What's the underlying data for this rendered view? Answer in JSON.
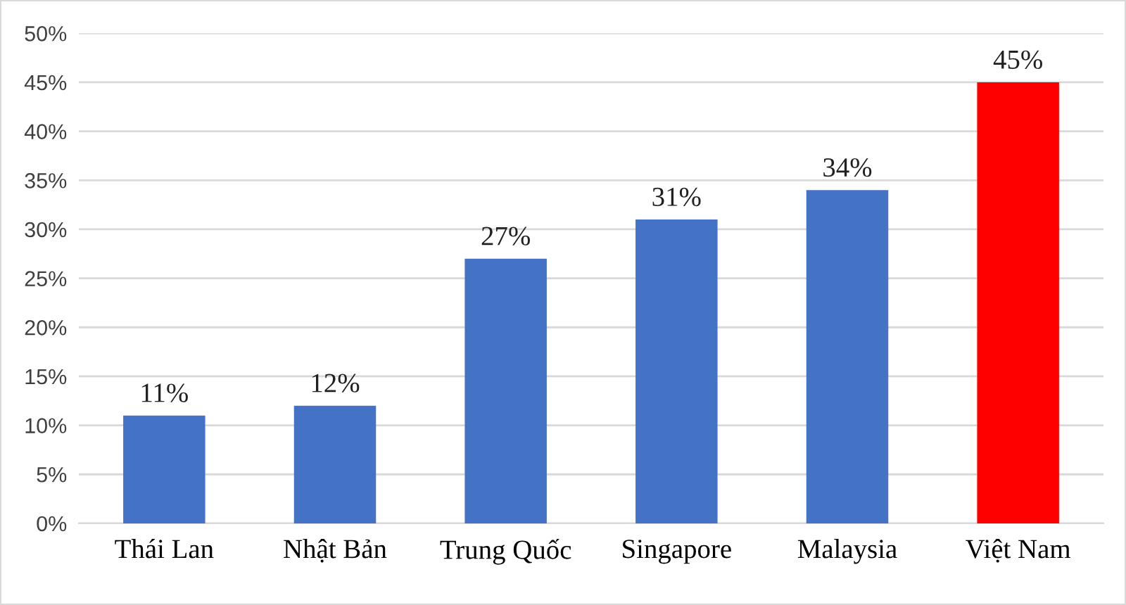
{
  "chart_data": {
    "type": "bar",
    "categories": [
      "Thái Lan",
      "Nhật Bản",
      "Trung Quốc",
      "Singapore",
      "Malaysia",
      "Việt Nam"
    ],
    "values": [
      11,
      12,
      27,
      31,
      34,
      45
    ],
    "colors": [
      "#4472c4",
      "#4472c4",
      "#4472c4",
      "#4472c4",
      "#4472c4",
      "#ff0000"
    ],
    "value_labels": [
      "11%",
      "12%",
      "27%",
      "31%",
      "34%",
      "45%"
    ],
    "ylim": [
      0,
      50
    ],
    "yticks": [
      {
        "value": 0,
        "label": "0%"
      },
      {
        "value": 5,
        "label": "5%"
      },
      {
        "value": 10,
        "label": "10%"
      },
      {
        "value": 15,
        "label": "15%"
      },
      {
        "value": 20,
        "label": "20%"
      },
      {
        "value": 25,
        "label": "25%"
      },
      {
        "value": 30,
        "label": "30%"
      },
      {
        "value": 35,
        "label": "35%"
      },
      {
        "value": 40,
        "label": "40%"
      },
      {
        "value": 45,
        "label": "45%"
      },
      {
        "value": 50,
        "label": "50%"
      }
    ],
    "grid": "y",
    "legend": false
  }
}
